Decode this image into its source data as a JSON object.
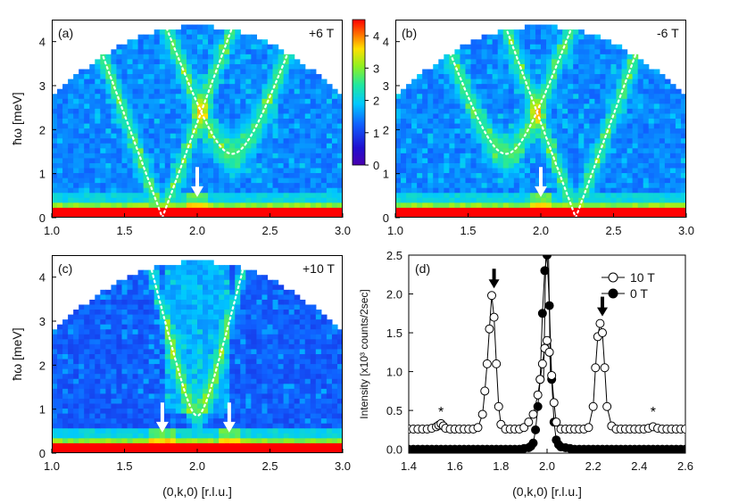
{
  "figure": {
    "title": ""
  },
  "colorbar": {
    "ticks": [
      "0",
      "1",
      "2",
      "3",
      "4"
    ],
    "range": [
      0,
      4.5
    ]
  },
  "chart_data": [
    {
      "panel": "(a)",
      "type": "heatmap",
      "field": "+6 T",
      "xlabel": "",
      "ylabel": "ħω [meV]",
      "xlim": [
        1.0,
        3.0
      ],
      "ylim": [
        0,
        4.5
      ],
      "xticks": [
        "1.0",
        "1.5",
        "2.0",
        "2.5",
        "3.0"
      ],
      "yticks": [
        "0",
        "1",
        "2",
        "3",
        "4"
      ],
      "dispersion": [
        {
          "name": "branch-k1.76",
          "min_k": 1.76,
          "gap": 0.0
        },
        {
          "name": "branch-k2.24",
          "min_k": 2.24,
          "gap": 1.45
        }
      ],
      "arrows": [
        2.0
      ]
    },
    {
      "panel": "(b)",
      "type": "heatmap",
      "field": "-6 T",
      "xlabel": "",
      "ylabel": "ħω [meV]",
      "xlim": [
        1.0,
        3.0
      ],
      "ylim": [
        0,
        4.5
      ],
      "xticks": [
        "1.0",
        "1.5",
        "2.0",
        "2.5",
        "3.0"
      ],
      "yticks": [
        "0",
        "1",
        "2",
        "3",
        "4"
      ],
      "dispersion": [
        {
          "name": "branch-k1.76",
          "min_k": 1.76,
          "gap": 1.45
        },
        {
          "name": "branch-k2.24",
          "min_k": 2.24,
          "gap": 0.0
        }
      ],
      "arrows": [
        2.0
      ]
    },
    {
      "panel": "(c)",
      "type": "heatmap",
      "field": "+10 T",
      "xlabel": "(0,k,0) [r.l.u.]",
      "ylabel": "ħω [meV]",
      "xlim": [
        1.0,
        3.0
      ],
      "ylim": [
        0,
        4.5
      ],
      "xticks": [
        "1.0",
        "1.5",
        "2.0",
        "2.5",
        "3.0"
      ],
      "yticks": [
        "0",
        "1",
        "2",
        "3",
        "4"
      ],
      "dispersion": [
        {
          "name": "branch-k2.0",
          "min_k": 2.0,
          "gap": 0.85
        }
      ],
      "arrows": [
        1.76,
        2.22
      ]
    },
    {
      "panel": "(d)",
      "type": "scatter",
      "xlabel": "(0,k,0) [r.l.u.]",
      "ylabel": "Intensity [x10³ counts/2sec]",
      "xlim": [
        1.4,
        2.6
      ],
      "ylim": [
        -0.05,
        2.5
      ],
      "xticks": [
        "1.4",
        "1.6",
        "1.8",
        "2.0",
        "2.2",
        "2.4",
        "2.6"
      ],
      "yticks": [
        "0.0",
        "0.5",
        "1.0",
        "1.5",
        "2.0",
        "2.5"
      ],
      "legend_position": "top-right",
      "series": [
        {
          "name": "10 T",
          "marker": "open-circle",
          "x": [
            1.4,
            1.42,
            1.44,
            1.46,
            1.48,
            1.5,
            1.52,
            1.53,
            1.54,
            1.55,
            1.56,
            1.58,
            1.6,
            1.62,
            1.64,
            1.66,
            1.68,
            1.7,
            1.72,
            1.73,
            1.74,
            1.75,
            1.76,
            1.77,
            1.78,
            1.79,
            1.8,
            1.82,
            1.84,
            1.86,
            1.88,
            1.9,
            1.92,
            1.94,
            1.96,
            1.97,
            1.98,
            1.99,
            2.0,
            2.01,
            2.02,
            2.03,
            2.04,
            2.06,
            2.08,
            2.1,
            2.12,
            2.14,
            2.16,
            2.18,
            2.2,
            2.21,
            2.22,
            2.23,
            2.24,
            2.25,
            2.26,
            2.28,
            2.3,
            2.32,
            2.34,
            2.36,
            2.38,
            2.4,
            2.42,
            2.44,
            2.46,
            2.48,
            2.5,
            2.52,
            2.54,
            2.56,
            2.58,
            2.6
          ],
          "y": [
            0.26,
            0.26,
            0.26,
            0.26,
            0.26,
            0.27,
            0.29,
            0.31,
            0.33,
            0.3,
            0.27,
            0.26,
            0.26,
            0.26,
            0.26,
            0.26,
            0.26,
            0.28,
            0.45,
            0.75,
            1.1,
            1.55,
            1.98,
            1.7,
            1.1,
            0.55,
            0.32,
            0.26,
            0.26,
            0.26,
            0.26,
            0.28,
            0.35,
            0.45,
            0.7,
            0.9,
            1.1,
            1.3,
            1.4,
            1.25,
            0.95,
            0.6,
            0.35,
            0.26,
            0.26,
            0.26,
            0.26,
            0.26,
            0.26,
            0.28,
            0.55,
            1.05,
            1.45,
            1.62,
            1.5,
            1.05,
            0.55,
            0.3,
            0.26,
            0.26,
            0.26,
            0.26,
            0.26,
            0.26,
            0.26,
            0.27,
            0.29,
            0.27,
            0.26,
            0.26,
            0.26,
            0.26,
            0.26,
            0.26
          ]
        },
        {
          "name": "0 T",
          "marker": "filled-circle",
          "x": [
            1.4,
            1.42,
            1.44,
            1.46,
            1.48,
            1.5,
            1.52,
            1.54,
            1.56,
            1.58,
            1.6,
            1.62,
            1.64,
            1.66,
            1.68,
            1.7,
            1.72,
            1.74,
            1.76,
            1.78,
            1.8,
            1.82,
            1.84,
            1.86,
            1.88,
            1.9,
            1.92,
            1.93,
            1.94,
            1.95,
            1.96,
            1.97,
            1.98,
            1.99,
            2.0,
            2.01,
            2.02,
            2.03,
            2.04,
            2.05,
            2.06,
            2.08,
            2.1,
            2.12,
            2.14,
            2.16,
            2.18,
            2.2,
            2.22,
            2.24,
            2.26,
            2.28,
            2.3,
            2.32,
            2.34,
            2.36,
            2.38,
            2.4,
            2.42,
            2.44,
            2.46,
            2.48,
            2.5,
            2.52,
            2.54,
            2.56,
            2.58,
            2.6
          ],
          "y": [
            0.0,
            0.0,
            0.0,
            0.0,
            0.0,
            0.0,
            0.0,
            0.0,
            0.0,
            0.0,
            0.0,
            0.0,
            0.0,
            0.0,
            0.0,
            0.0,
            0.0,
            0.0,
            0.0,
            0.0,
            0.0,
            0.0,
            0.0,
            0.0,
            0.0,
            0.01,
            0.02,
            0.04,
            0.08,
            0.25,
            0.55,
            0.9,
            1.75,
            2.3,
            2.5,
            1.85,
            0.9,
            0.35,
            0.12,
            0.06,
            0.03,
            0.02,
            0.01,
            0.0,
            0.0,
            0.0,
            0.0,
            0.0,
            0.0,
            0.0,
            0.0,
            0.0,
            0.0,
            0.0,
            0.0,
            0.0,
            0.0,
            0.0,
            0.0,
            0.0,
            0.0,
            0.0,
            0.0,
            0.0,
            0.0,
            0.0,
            0.0,
            0.0
          ]
        }
      ],
      "peak_arrows": [
        1.77,
        2.24
      ],
      "asterisks": [
        {
          "x": 1.54,
          "label": "*"
        },
        {
          "x": 2.46,
          "label": "*"
        }
      ]
    }
  ]
}
